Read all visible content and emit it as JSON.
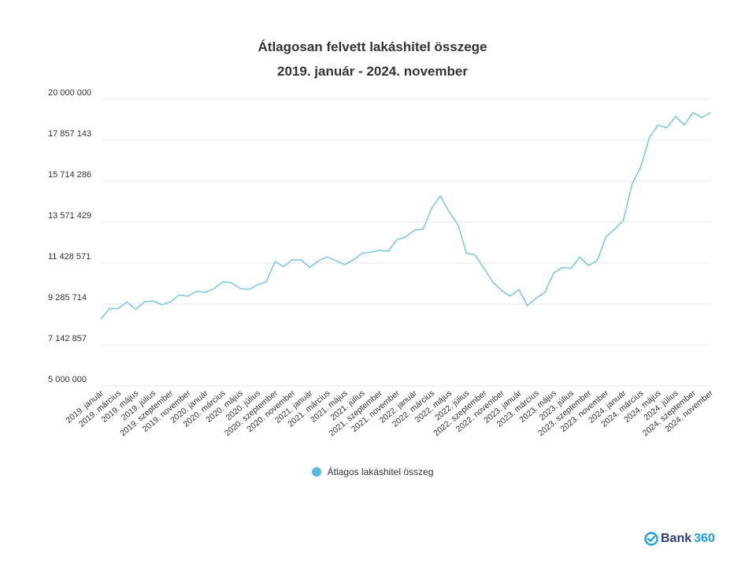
{
  "colors": {
    "series": "#7ec8e6",
    "grid": "#e5e5e5",
    "text": "#333333",
    "legend_dot": "#5bb8e0",
    "brand_dark": "#2a3f73",
    "brand_light": "#1da1e4"
  },
  "brand": {
    "name_a": "Bank",
    "name_b": "360",
    "icon": "check-circle-icon"
  },
  "chart_data": {
    "type": "line",
    "title": "Átlagosan felvett lakáshitel összege",
    "subtitle": "2019. január - 2024. november",
    "xlabel": "",
    "ylabel": "",
    "ylim": [
      5000000,
      20000000
    ],
    "yticks": [
      "20 000 000",
      "17 857 143",
      "15 714 286",
      "13 571 429",
      "11 428 571",
      "9 285 714",
      "7 142 857",
      "5 000 000"
    ],
    "ytick_values": [
      20000000,
      17857143,
      15714286,
      13571429,
      11428571,
      9285714,
      7142857,
      5000000
    ],
    "grid": true,
    "legend_position": "bottom",
    "x_tick_labels": [
      "2019. január",
      "2019. március",
      "2019. május",
      "2019. július",
      "2019. szeptember",
      "2019. november",
      "2020. január",
      "2020. március",
      "2020. május",
      "2020. július",
      "2020. szeptember",
      "2020. november",
      "2021. január",
      "2021. március",
      "2021. május",
      "2021. július",
      "2021. szeptember",
      "2021. november",
      "2022. január",
      "2022. március",
      "2022. május",
      "2022. július",
      "2022. szeptember",
      "2022. november",
      "2023. január",
      "2023. március",
      "2023. május",
      "2023. július",
      "2023. szeptember",
      "2023. november",
      "2024. január",
      "2024. március",
      "2024. május",
      "2024. július",
      "2024. szeptember",
      "2024. november"
    ],
    "series": [
      {
        "name": "Átlagos lakáshitel összeg",
        "values": [
          8500000,
          9050000,
          9050000,
          9400000,
          9000000,
          9400000,
          9450000,
          9250000,
          9400000,
          9750000,
          9700000,
          9950000,
          9900000,
          10100000,
          10450000,
          10400000,
          10100000,
          10050000,
          10300000,
          10450000,
          11500000,
          11250000,
          11600000,
          11600000,
          11200000,
          11550000,
          11750000,
          11550000,
          11350000,
          11600000,
          11950000,
          12000000,
          12100000,
          12050000,
          12650000,
          12800000,
          13150000,
          13200000,
          14300000,
          14950000,
          14100000,
          13450000,
          11950000,
          11850000,
          11150000,
          10450000,
          10000000,
          9700000,
          10050000,
          9200000,
          9600000,
          9900000,
          10900000,
          11200000,
          11150000,
          11750000,
          11300000,
          11550000,
          12800000,
          13200000,
          13650000,
          15550000,
          16450000,
          18000000,
          18650000,
          18500000,
          19100000,
          18650000,
          19300000,
          19050000,
          19300000
        ]
      }
    ]
  }
}
